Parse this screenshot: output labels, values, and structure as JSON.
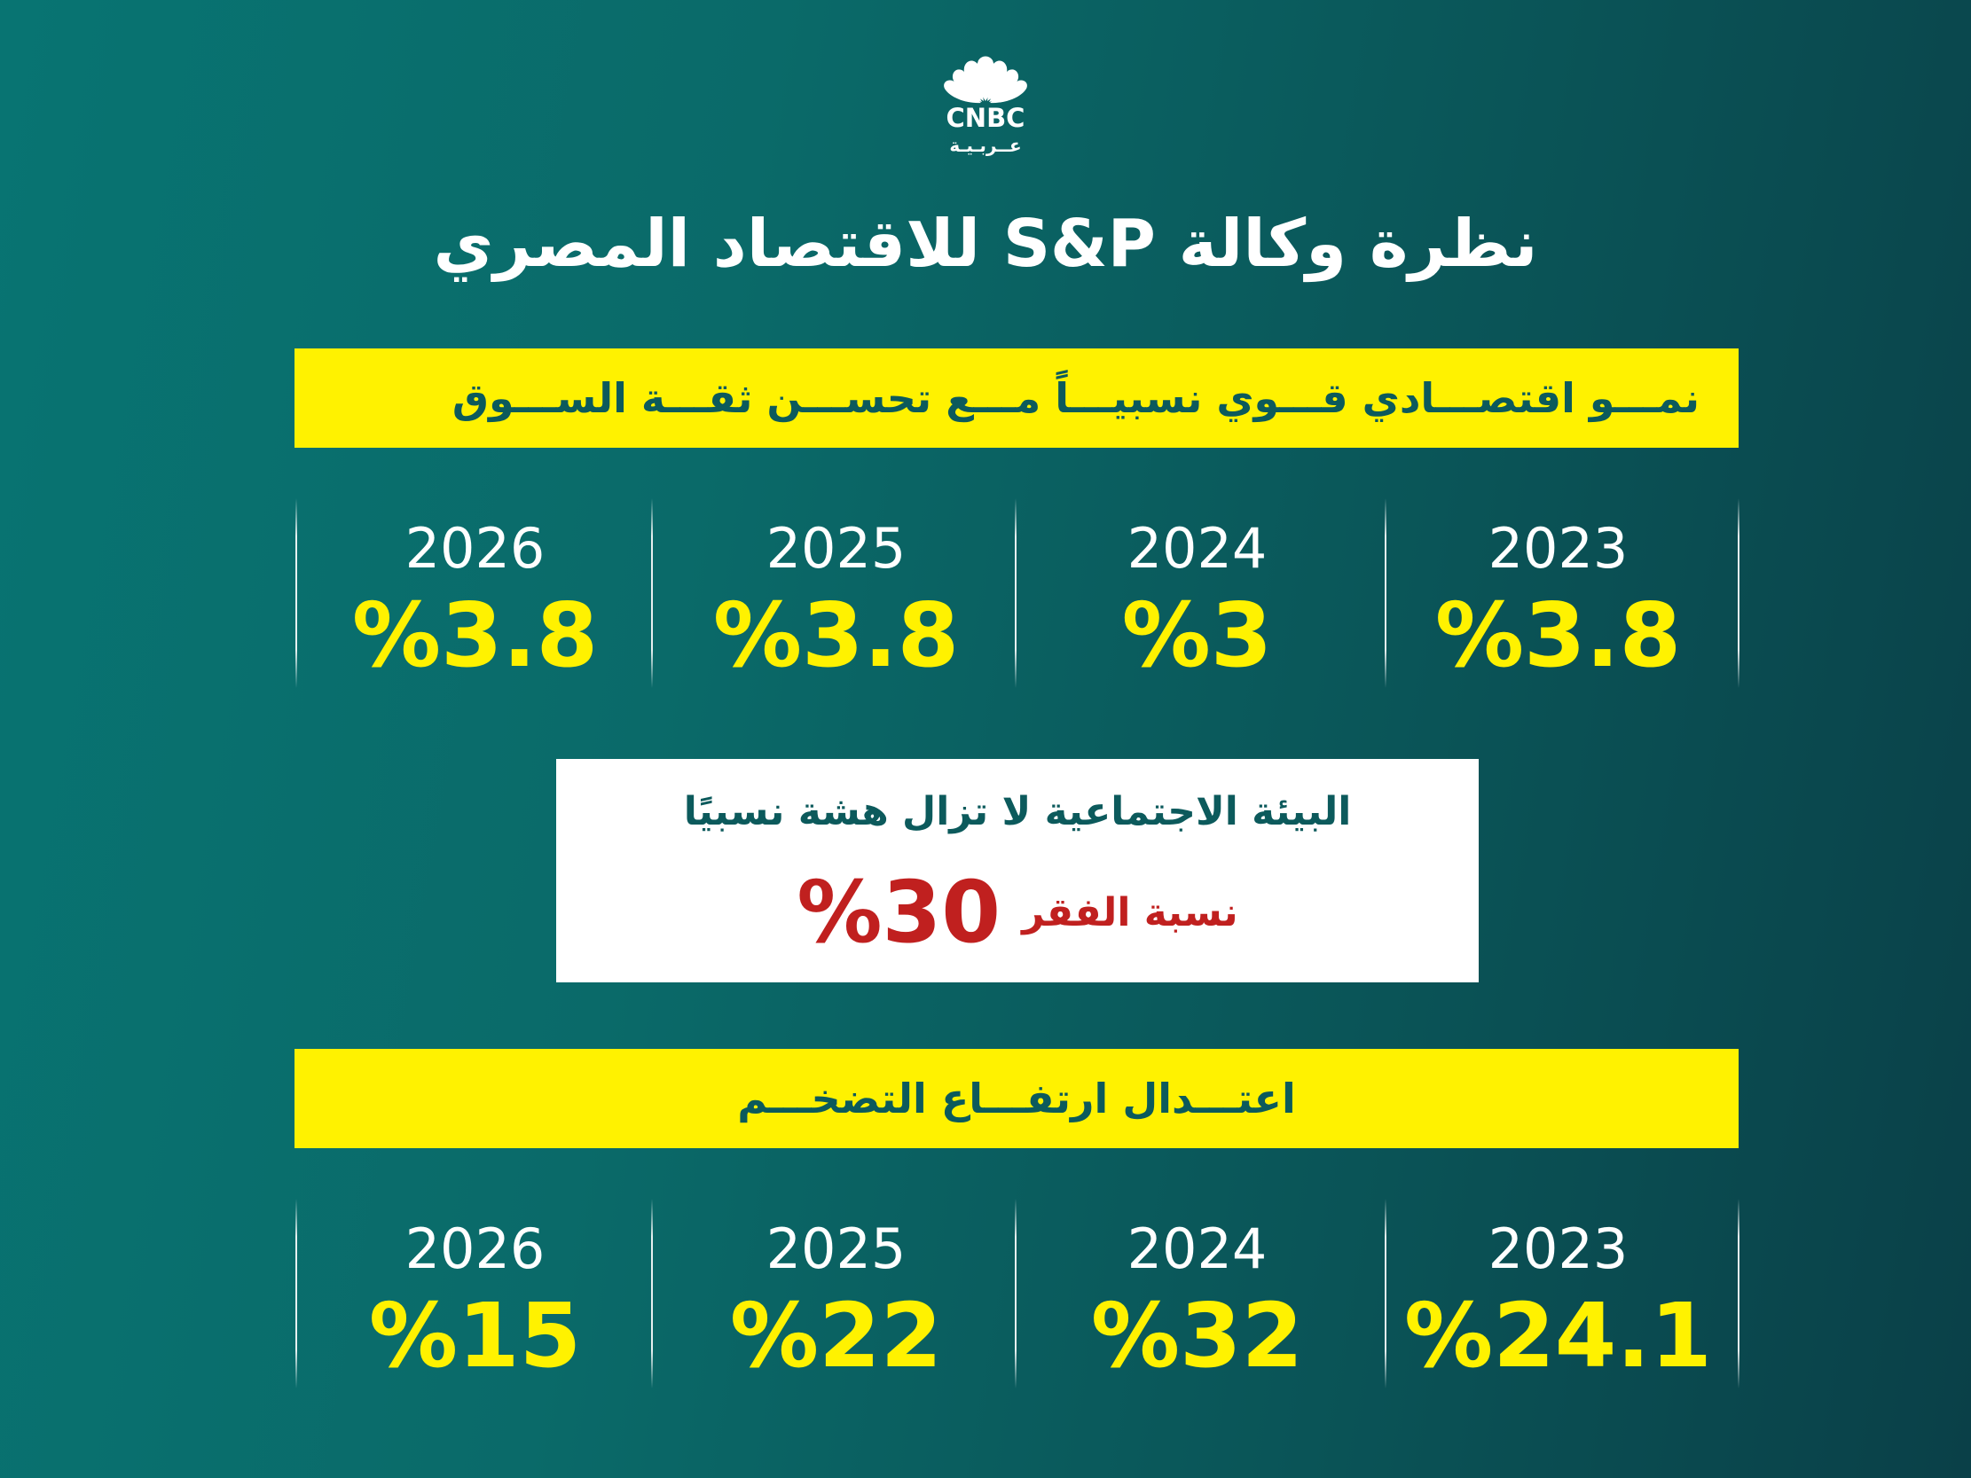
{
  "logo": {
    "name": "CNBC",
    "sub": "عــربـيـة",
    "icon": "peacock-icon",
    "colors": {
      "icon": "#ffffff"
    }
  },
  "title": "نظرة وكالة S&P للاقتصاد المصري",
  "growth": {
    "banner": "نمـــو اقتصـــادي قـــوي نسبيـــاً مـــع تحســـن ثقـــة الســـوق",
    "stats": [
      {
        "year": "2023",
        "value": "%3.8"
      },
      {
        "year": "2024",
        "value": "%3"
      },
      {
        "year": "2025",
        "value": "%3.8"
      },
      {
        "year": "2026",
        "value": "%3.8"
      }
    ]
  },
  "poverty": {
    "heading": "البيئة الاجتماعية لا تزال هشة نسبيًا",
    "label": "نسبة الفقر",
    "value": "%30"
  },
  "inflation": {
    "banner": "اعتـــدال ارتفـــاع التضخـــم",
    "stats": [
      {
        "year": "2023",
        "value": "%24.1"
      },
      {
        "year": "2024",
        "value": "%32"
      },
      {
        "year": "2025",
        "value": "%22"
      },
      {
        "year": "2026",
        "value": "%15"
      }
    ]
  },
  "colors": {
    "background_start": "#087472",
    "background_end": "#0a4048",
    "yellow": "#fff200",
    "teal_text": "#0c5a5c",
    "red": "#c0201f"
  }
}
